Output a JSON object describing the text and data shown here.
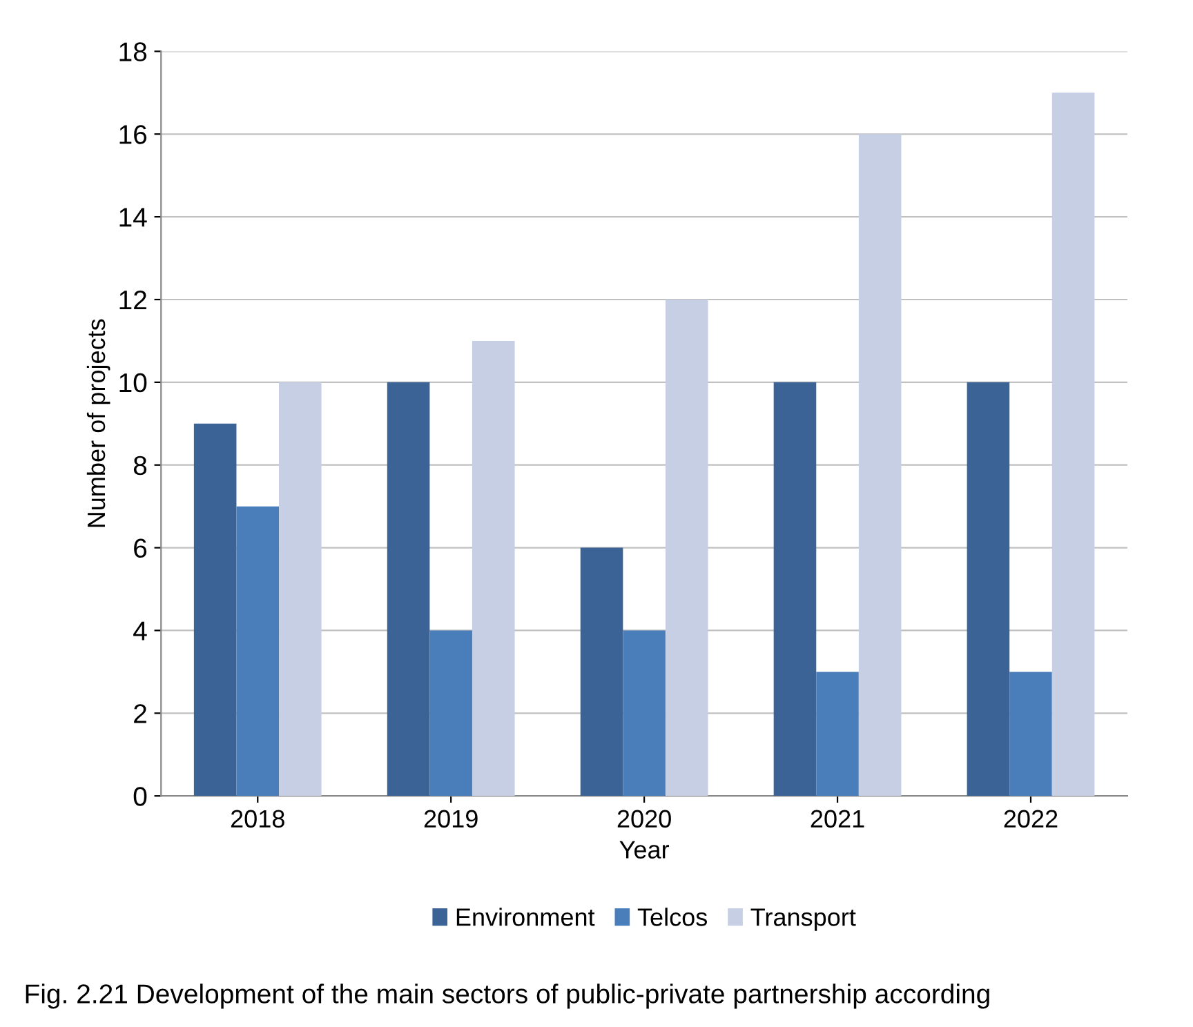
{
  "chart_data": {
    "type": "bar",
    "xlabel": "Year",
    "ylabel": "Number of projects",
    "categories": [
      "2018",
      "2019",
      "2020",
      "2021",
      "2022"
    ],
    "series": [
      {
        "name": "Environment",
        "color": "#3b6396",
        "values": [
          9,
          10,
          6,
          10,
          10
        ]
      },
      {
        "name": "Telcos",
        "color": "#4a7ebb",
        "values": [
          7,
          4,
          4,
          3,
          3
        ]
      },
      {
        "name": "Transport",
        "color": "#c6cfe3",
        "values": [
          10,
          11,
          12,
          16,
          17
        ]
      }
    ],
    "ylim": [
      0,
      18
    ],
    "yticks": [
      0,
      2,
      4,
      6,
      8,
      10,
      12,
      14,
      16,
      18
    ],
    "grid": "y",
    "legend": "bottom",
    "annotations": [
      "Fig. 2.21 Development of the main sectors of public-private partnership according"
    ]
  }
}
